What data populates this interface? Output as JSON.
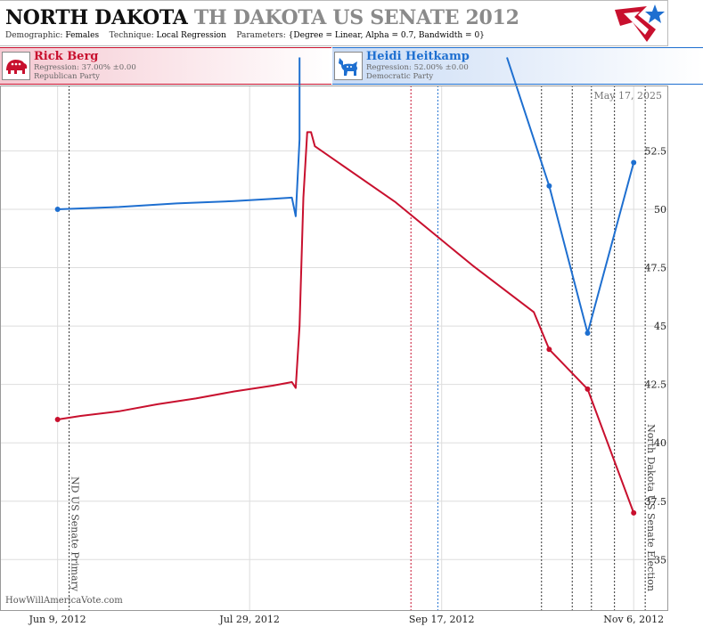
{
  "header": {
    "title_state": "NORTH DAKOTA",
    "title_race": "TH DAKOTA US SENATE 2012",
    "subtitle": {
      "demographic_label": "Demographic:",
      "demographic": "Females",
      "technique_label": "Technique:",
      "technique": "Local Regression",
      "parameters_label": "Parameters:",
      "parameters": "{Degree = Linear, Alpha = 0.7, Bandwidth = 0}"
    }
  },
  "candidates": [
    {
      "name": "Rick Berg",
      "regression": "Regression: 37.00% ±0.00",
      "party": "Republican Party",
      "color": "#c8102e",
      "icon": "elephant-icon"
    },
    {
      "name": "Heidi Heitkamp",
      "regression": "Regression: 52.00% ±0.00",
      "party": "Democratic Party",
      "color": "#1e6fd0",
      "icon": "donkey-icon"
    }
  ],
  "watermark": "HowWillAmericaVote.com",
  "date_stamp": "May 17, 2025",
  "chart_data": {
    "type": "line",
    "x_tick_labels": [
      "Jun 9, 2012",
      "Jul 29, 2012",
      "Sep 17, 2012",
      "Nov 6, 2012"
    ],
    "x_ticks": [
      "2012-06-09",
      "2012-07-29",
      "2012-09-17",
      "2012-11-06"
    ],
    "xlim": [
      "2012-05-25",
      "2012-11-15"
    ],
    "ylim": [
      32.8,
      55.3
    ],
    "y_ticks": [
      35,
      37.5,
      40,
      42.5,
      45,
      47.5,
      50,
      52.5
    ],
    "y_tick_labels": [
      "35",
      "37.5",
      "40",
      "42.5",
      "45",
      "47.5",
      "50",
      "52.5"
    ],
    "grid": true,
    "series": [
      {
        "name": "Rick Berg",
        "color": "#c8102e",
        "line": [
          [
            "2012-06-09",
            41.0
          ],
          [
            "2012-06-15",
            41.15
          ],
          [
            "2012-06-25",
            41.35
          ],
          [
            "2012-07-05",
            41.65
          ],
          [
            "2012-07-15",
            41.9
          ],
          [
            "2012-07-25",
            42.2
          ],
          [
            "2012-08-04",
            42.45
          ],
          [
            "2012-08-09",
            42.6
          ],
          [
            "2012-08-10",
            42.35
          ],
          [
            "2012-08-11",
            45.0
          ],
          [
            "2012-08-12",
            50.5
          ],
          [
            "2012-08-13",
            53.3
          ],
          [
            "2012-08-14",
            53.3
          ],
          [
            "2012-08-15",
            52.7
          ],
          [
            "2012-09-05",
            50.3
          ],
          [
            "2012-09-25",
            47.6
          ],
          [
            "2012-10-11",
            45.6
          ],
          [
            "2012-10-15",
            44.0
          ],
          [
            "2012-10-25",
            42.3
          ],
          [
            "2012-11-06",
            37.0
          ]
        ],
        "points": [
          [
            "2012-06-09",
            41.0
          ],
          [
            "2012-10-15",
            44.0
          ],
          [
            "2012-10-25",
            42.3
          ],
          [
            "2012-11-06",
            37.0
          ]
        ]
      },
      {
        "name": "Heidi Heitkamp",
        "color": "#1e6fd0",
        "line": [
          [
            "2012-06-09",
            50.0
          ],
          [
            "2012-06-25",
            50.1
          ],
          [
            "2012-07-10",
            50.25
          ],
          [
            "2012-07-25",
            50.35
          ],
          [
            "2012-08-04",
            50.45
          ],
          [
            "2012-08-09",
            50.5
          ],
          [
            "2012-08-10",
            49.7
          ],
          [
            "2012-08-11",
            53.0
          ],
          [
            "2012-08-11",
            56.5
          ]
        ],
        "line2": [
          [
            "2012-10-04",
            56.5
          ],
          [
            "2012-10-15",
            51.0
          ],
          [
            "2012-10-25",
            44.7
          ],
          [
            "2012-11-06",
            52.0
          ]
        ],
        "points": [
          [
            "2012-06-09",
            50.0
          ],
          [
            "2012-10-15",
            51.0
          ],
          [
            "2012-10-25",
            44.7
          ],
          [
            "2012-11-06",
            52.0
          ]
        ]
      }
    ],
    "vlines": [
      {
        "date": "2012-06-12",
        "color": "#333",
        "label": "ND US Senate Primary"
      },
      {
        "date": "2012-09-09",
        "color": "#c8102e",
        "label": ""
      },
      {
        "date": "2012-09-16",
        "color": "#1e6fd0",
        "label": ""
      },
      {
        "date": "2012-10-13",
        "color": "#333",
        "label": ""
      },
      {
        "date": "2012-10-21",
        "color": "#333",
        "label": ""
      },
      {
        "date": "2012-10-26",
        "color": "#333",
        "label": ""
      },
      {
        "date": "2012-11-01",
        "color": "#333",
        "label": ""
      },
      {
        "date": "2012-11-09",
        "color": "#333",
        "label": "North Dakota US Senate Election"
      }
    ]
  }
}
